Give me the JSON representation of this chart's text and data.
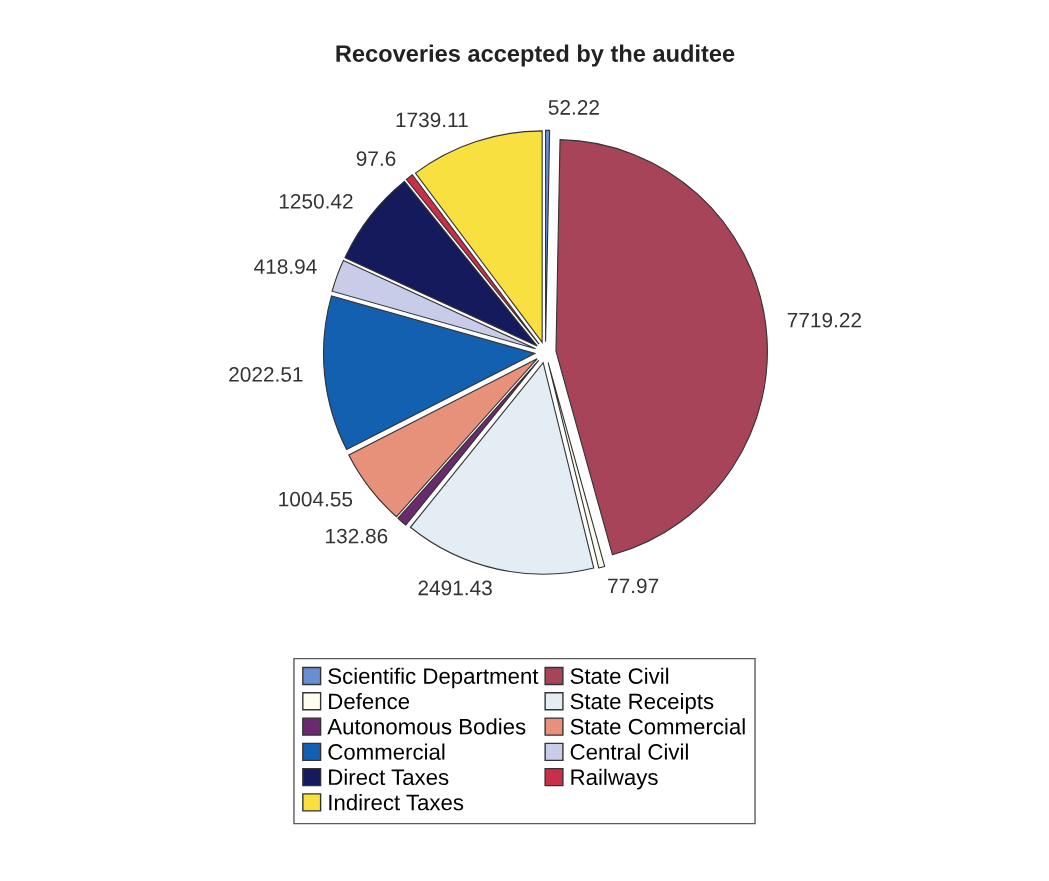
{
  "chart_data": {
    "type": "pie",
    "title": "Recoveries accepted by the auditee",
    "categories": [
      "Scientific Department",
      "State Civil",
      "Defence",
      "State Receipts",
      "Autonomous Bodies",
      "State Commercial",
      "Commercial",
      "Central Civil",
      "Direct Taxes",
      "Railways",
      "Indirect Taxes"
    ],
    "values": [
      52.22,
      7719.22,
      77.97,
      2491.43,
      132.86,
      1004.55,
      2022.51,
      418.94,
      1250.42,
      97.6,
      1739.11
    ],
    "colors": [
      "#6a8fd0",
      "#a8445a",
      "#fdfdf0",
      "#e4edf3",
      "#6a2a6e",
      "#e8917a",
      "#1460b0",
      "#c8cce8",
      "#141a5c",
      "#c8304a",
      "#f8e040"
    ],
    "data_labels": true,
    "legend": "bottom"
  }
}
